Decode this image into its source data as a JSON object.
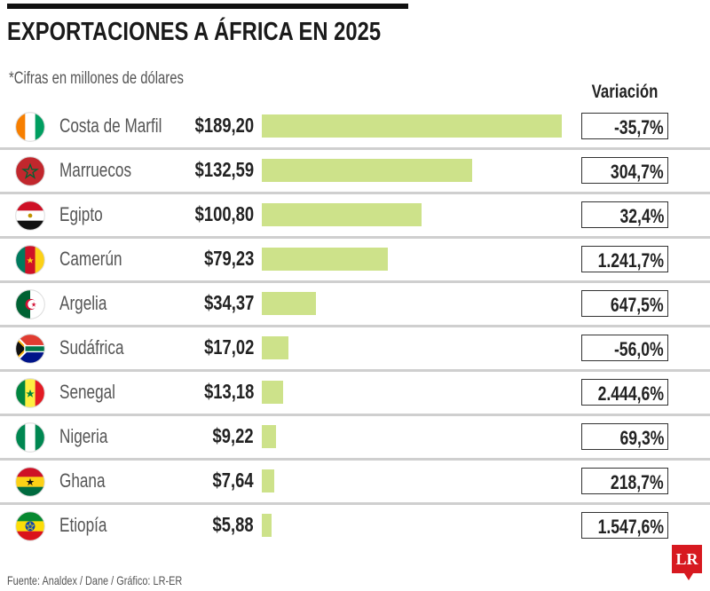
{
  "chart_data": {
    "type": "bar",
    "orientation": "horizontal",
    "title": "EXPORTACIONES A ÁFRICA EN 2025",
    "subtitle": "*Cifras en millones de dólares",
    "variation_header": "Variación",
    "categories": [
      "Costa de Marfil",
      "Marruecos",
      "Egipto",
      "Camerún",
      "Argelia",
      "Sudáfrica",
      "Senegal",
      "Nigeria",
      "Ghana",
      "Etiopía"
    ],
    "values": [
      189.2,
      132.59,
      100.8,
      79.23,
      34.37,
      17.02,
      13.18,
      9.22,
      7.64,
      5.88
    ],
    "value_labels": [
      "$189,20",
      "$132,59",
      "$100,80",
      "$79,23",
      "$34,37",
      "$17,02",
      "$13,18",
      "$9,22",
      "$7,64",
      "$5,88"
    ],
    "variation": [
      "-35,7%",
      "304,7%",
      "32,4%",
      "1.241,7%",
      "647,5%",
      "-56,0%",
      "2.444,6%",
      "69,3%",
      "218,7%",
      "1.547,6%"
    ],
    "flags": [
      "ivory-coast-flag-icon",
      "morocco-flag-icon",
      "egypt-flag-icon",
      "cameroon-flag-icon",
      "algeria-flag-icon",
      "south-africa-flag-icon",
      "senegal-flag-icon",
      "nigeria-flag-icon",
      "ghana-flag-icon",
      "ethiopia-flag-icon"
    ],
    "bar_color": "#cde28a",
    "source": "Fuente: Analdex / Dane / Gráfico: LR-ER",
    "logo": "LR"
  }
}
